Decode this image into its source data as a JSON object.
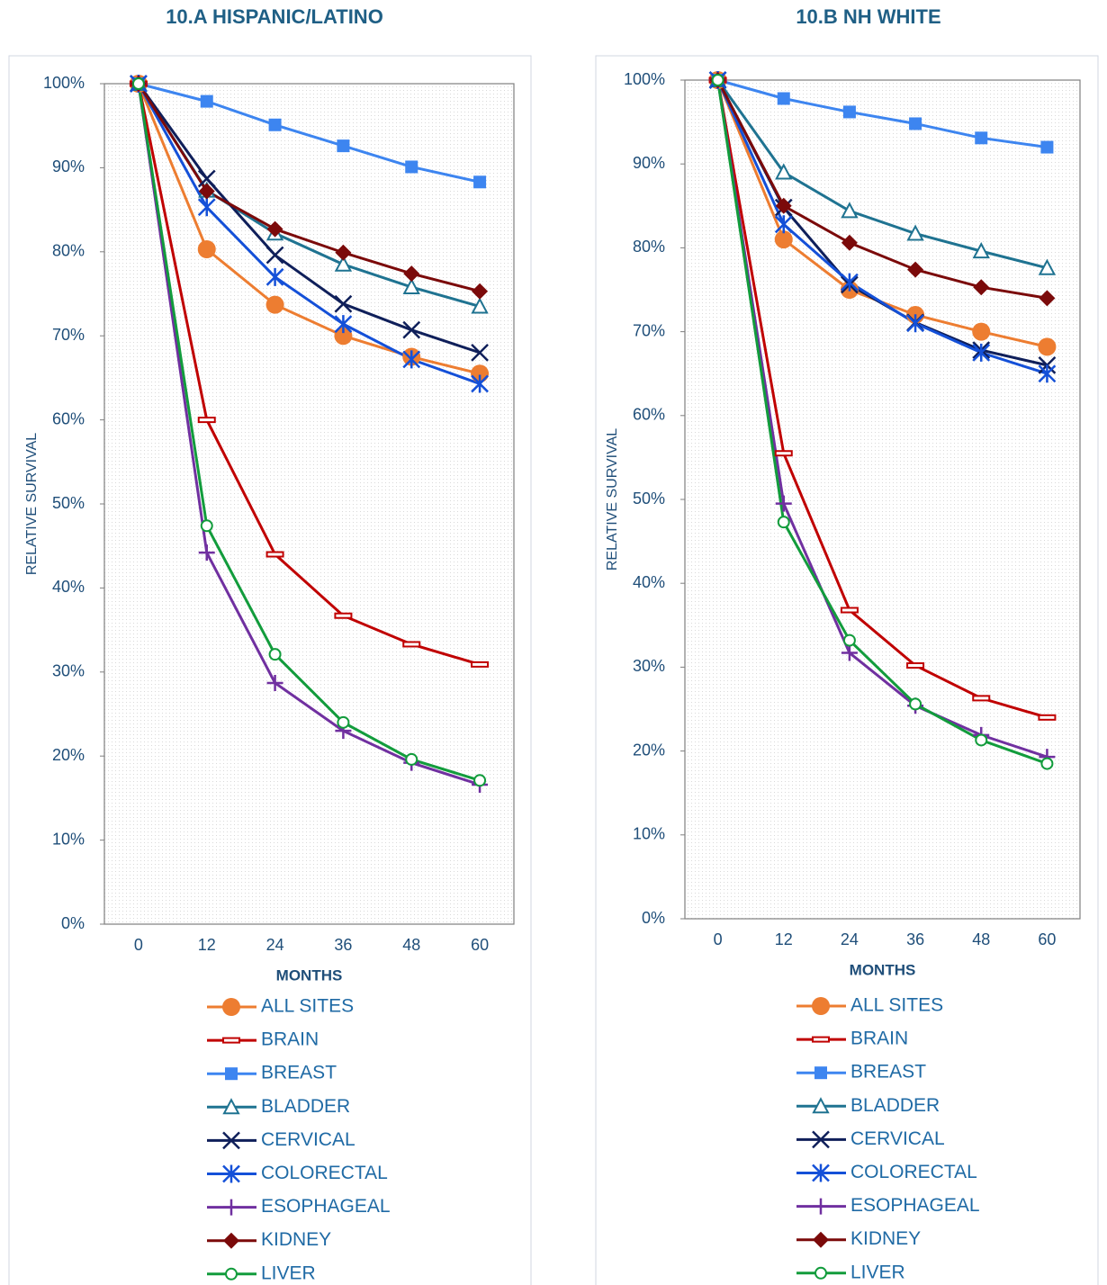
{
  "chart_data": [
    {
      "type": "line",
      "title": "10.A   HISPANIC/LATINO",
      "x_label": "MONTHS",
      "y_label": "RELATIVE SURVIVAL",
      "categories": [
        "0",
        "12",
        "24",
        "36",
        "48",
        "60"
      ],
      "ylim": [
        0,
        100
      ],
      "yticks": [
        {
          "value": 0,
          "label": "0%"
        },
        {
          "value": 10,
          "label": "10%"
        },
        {
          "value": 20,
          "label": "20%"
        },
        {
          "value": 30,
          "label": "30%"
        },
        {
          "value": 40,
          "label": "40%"
        },
        {
          "value": 50,
          "label": "50%"
        },
        {
          "value": 60,
          "label": "60%"
        },
        {
          "value": 70,
          "label": "70%"
        },
        {
          "value": 80,
          "label": "80%"
        },
        {
          "value": 90,
          "label": "90%"
        },
        {
          "value": 100,
          "label": "100%"
        }
      ],
      "legend": "bottom",
      "series": [
        {
          "name": "ALL SITES",
          "color": "#ed7d31",
          "marker": "circle",
          "values": [
            100,
            80.3,
            73.7,
            70.0,
            67.5,
            65.5
          ]
        },
        {
          "name": "BRAIN",
          "color": "#c00000",
          "marker": "dash",
          "values": [
            100,
            60.0,
            44.0,
            36.7,
            33.3,
            30.9
          ]
        },
        {
          "name": "BREAST",
          "color": "#3d85f0",
          "marker": "square",
          "values": [
            100,
            97.9,
            95.1,
            92.6,
            90.1,
            88.3
          ]
        },
        {
          "name": "BLADDER",
          "color": "#1f7391",
          "marker": "triangle",
          "values": [
            100,
            87.3,
            82.2,
            78.5,
            75.8,
            73.5
          ]
        },
        {
          "name": "CERVICAL",
          "color": "#0f1f5a",
          "marker": "x",
          "values": [
            100,
            88.7,
            79.6,
            73.8,
            70.7,
            68.0
          ]
        },
        {
          "name": "COLORECTAL",
          "color": "#1450d8",
          "marker": "asterisk",
          "values": [
            100,
            85.3,
            77.0,
            71.4,
            67.2,
            64.3
          ]
        },
        {
          "name": "ESOPHAGEAL",
          "color": "#7030a0",
          "marker": "plus",
          "values": [
            100,
            44.2,
            28.7,
            23.0,
            19.2,
            16.6
          ]
        },
        {
          "name": "KIDNEY",
          "color": "#7b0a0a",
          "marker": "diamond",
          "values": [
            100,
            87.2,
            82.7,
            79.9,
            77.4,
            75.3
          ]
        },
        {
          "name": "LIVER",
          "color": "#129c3c",
          "marker": "ring",
          "values": [
            100,
            47.4,
            32.1,
            24.0,
            19.6,
            17.1
          ]
        }
      ]
    },
    {
      "type": "line",
      "title": "10.B   NH WHITE",
      "x_label": "MONTHS",
      "y_label": "RELATIVE SURVIVAL",
      "categories": [
        "0",
        "12",
        "24",
        "36",
        "48",
        "60"
      ],
      "ylim": [
        0,
        100
      ],
      "yticks": [
        {
          "value": 0,
          "label": "0%"
        },
        {
          "value": 10,
          "label": "10%"
        },
        {
          "value": 20,
          "label": "20%"
        },
        {
          "value": 30,
          "label": "30%"
        },
        {
          "value": 40,
          "label": "40%"
        },
        {
          "value": 50,
          "label": "50%"
        },
        {
          "value": 60,
          "label": "60%"
        },
        {
          "value": 70,
          "label": "70%"
        },
        {
          "value": 80,
          "label": "80%"
        },
        {
          "value": 90,
          "label": "90%"
        },
        {
          "value": 100,
          "label": "100%"
        }
      ],
      "legend": "bottom",
      "series": [
        {
          "name": "ALL SITES",
          "color": "#ed7d31",
          "marker": "circle",
          "values": [
            100,
            81.0,
            75.0,
            72.0,
            70.0,
            68.2
          ]
        },
        {
          "name": "BRAIN",
          "color": "#c00000",
          "marker": "dash",
          "values": [
            100,
            55.5,
            36.8,
            30.2,
            26.3,
            24.0
          ]
        },
        {
          "name": "BREAST",
          "color": "#3d85f0",
          "marker": "square",
          "values": [
            100,
            97.8,
            96.2,
            94.8,
            93.1,
            92.0
          ]
        },
        {
          "name": "BLADDER",
          "color": "#1f7391",
          "marker": "triangle",
          "values": [
            100,
            89.0,
            84.4,
            81.7,
            79.6,
            77.6
          ]
        },
        {
          "name": "CERVICAL",
          "color": "#0f1f5a",
          "marker": "x",
          "values": [
            100,
            84.8,
            75.6,
            71.1,
            67.8,
            66.0
          ]
        },
        {
          "name": "COLORECTAL",
          "color": "#1450d8",
          "marker": "asterisk",
          "values": [
            100,
            82.8,
            75.9,
            71.0,
            67.5,
            65.0
          ]
        },
        {
          "name": "ESOPHAGEAL",
          "color": "#7030a0",
          "marker": "plus",
          "values": [
            100,
            49.5,
            31.7,
            25.4,
            21.9,
            19.3
          ]
        },
        {
          "name": "KIDNEY",
          "color": "#7b0a0a",
          "marker": "diamond",
          "values": [
            100,
            85.0,
            80.6,
            77.4,
            75.3,
            74.0
          ]
        },
        {
          "name": "LIVER",
          "color": "#129c3c",
          "marker": "ring",
          "values": [
            100,
            47.3,
            33.2,
            25.6,
            21.3,
            18.5
          ]
        }
      ]
    }
  ]
}
